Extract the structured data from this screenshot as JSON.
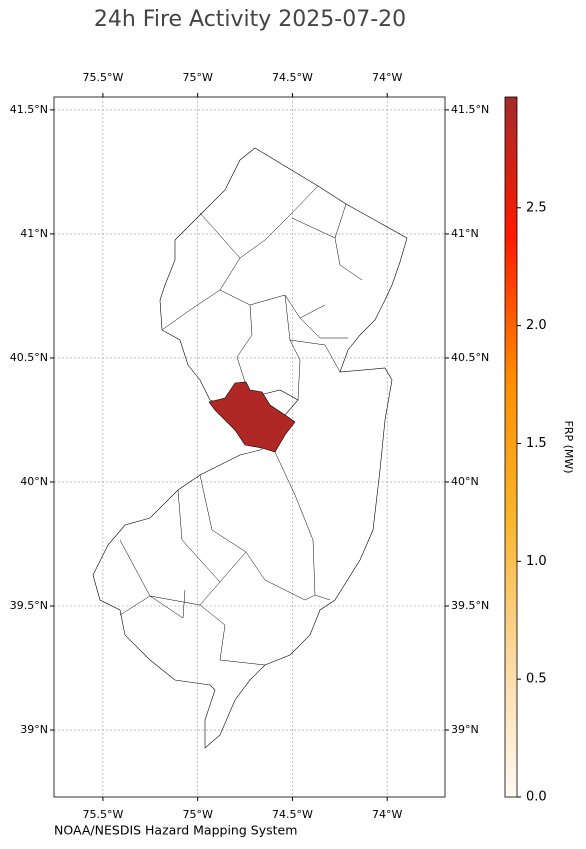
{
  "chart_data": {
    "type": "map",
    "title": "24h Fire Activity 2025-07-20",
    "credit": "NOAA/NESDIS Hazard Mapping System",
    "values": [
      2.9
    ],
    "colorbar_label": "FRP (MW)",
    "colormap": [
      "#fffaf3",
      "#fbd9a0",
      "#fbb42a",
      "#ff8c00",
      "#ff1a00",
      "#a52a2a"
    ],
    "clim": [
      0,
      2.97
    ],
    "cticks": [
      {
        "value": 0,
        "label": "0.0"
      },
      0.5,
      {
        "value": 1,
        "label": "1.0"
      },
      1.5,
      {
        "value": 2,
        "label": "2.0"
      },
      2.5
    ],
    "xlim": [
      -75.758,
      -73.695
    ],
    "ylim": [
      38.73,
      41.552
    ],
    "xticks": [
      {
        "value": -75.5,
        "label": "75.5°W"
      },
      {
        "value": -75,
        "label": "75°W"
      },
      {
        "value": -74.5,
        "label": "74.5°W"
      },
      {
        "value": -74,
        "label": "74°W"
      }
    ],
    "yticks": [
      {
        "value": 39,
        "label": "39°N"
      },
      {
        "value": 39.5,
        "label": "39.5°N"
      },
      {
        "value": 40,
        "label": "40°N"
      },
      {
        "value": 40.5,
        "label": "40.5°N"
      },
      {
        "value": 41,
        "label": "41°N"
      },
      {
        "value": 41.5,
        "label": "41.5°N"
      }
    ],
    "grid": true
  }
}
